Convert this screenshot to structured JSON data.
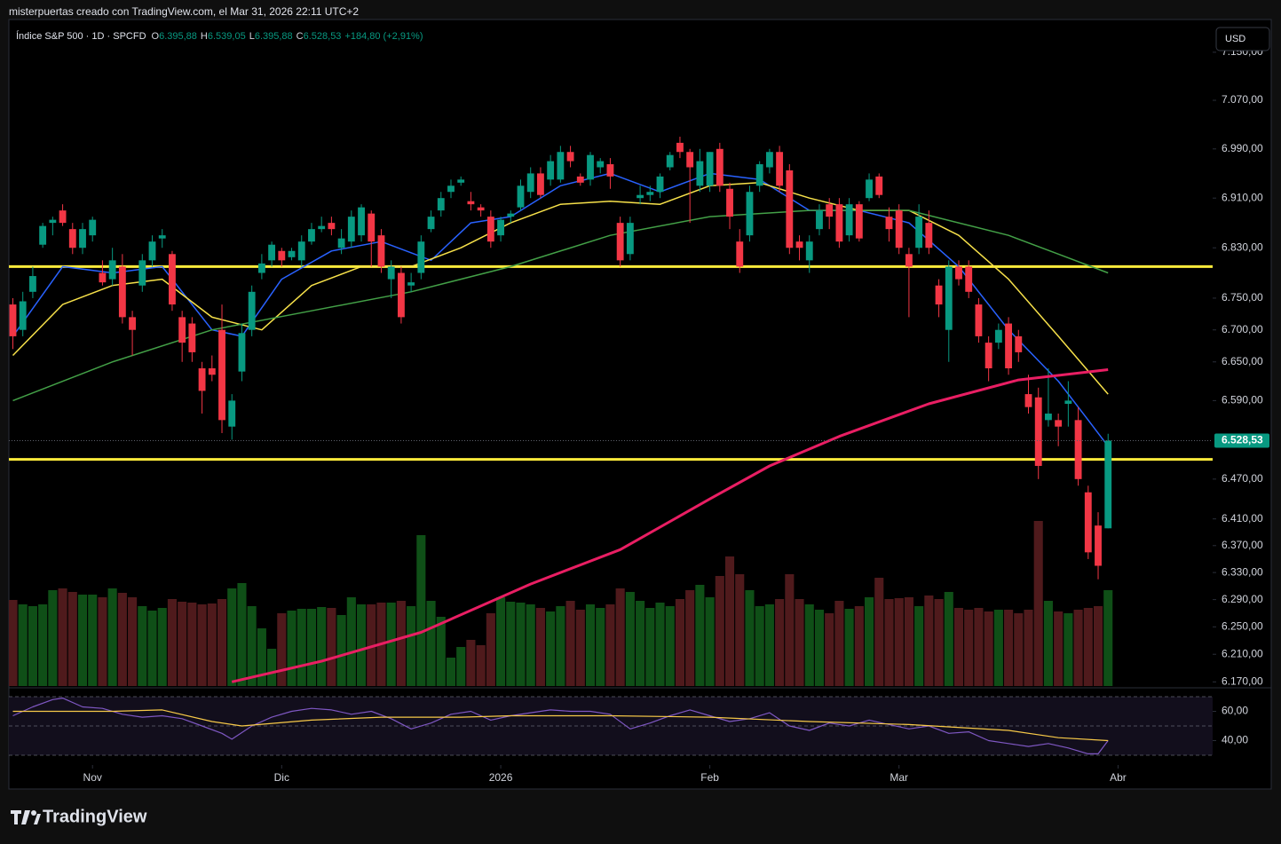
{
  "header": {
    "caption": "misterpuertas creado con TradingView.com, el Mar 31, 2026 22:11 UTC+2",
    "currency": "USD",
    "brand": "TradingView"
  },
  "chart_data": {
    "type": "candlestick",
    "title": "Índice S&P 500 · 1D · SPCFD",
    "ohlc_legend": [
      {
        "key": "O",
        "text": "6.395,88"
      },
      {
        "key": "H",
        "text": "6.539,05"
      },
      {
        "key": "L",
        "text": "6.395,88"
      },
      {
        "key": "C",
        "text": "6.528,53"
      }
    ],
    "change": "+184,80 (+2,91%)",
    "log_scale": true,
    "grid": false,
    "xlim": [
      -0.4,
      120.5
    ],
    "xticks": [
      {
        "value": 8,
        "label": "Nov"
      },
      {
        "value": 27,
        "label": "Dic"
      },
      {
        "value": 49,
        "label": "2026"
      },
      {
        "value": 70,
        "label": "Feb"
      },
      {
        "value": 89,
        "label": "Mar"
      },
      {
        "value": 111,
        "label": "Abr"
      }
    ],
    "ylim": [
      6164,
      7205
    ],
    "yticks": [
      {
        "value": 6170,
        "label": "6.170,00"
      },
      {
        "value": 6210,
        "label": "6.210,00"
      },
      {
        "value": 6250,
        "label": "6.250,00"
      },
      {
        "value": 6290,
        "label": "6.290,00"
      },
      {
        "value": 6330,
        "label": "6.330,00"
      },
      {
        "value": 6370,
        "label": "6.370,00"
      },
      {
        "value": 6410,
        "label": "6.410,00"
      },
      {
        "value": 6470,
        "label": "6.470,00"
      },
      {
        "value": 6590,
        "label": "6.590,00"
      },
      {
        "value": 6650,
        "label": "6.650,00"
      },
      {
        "value": 6700,
        "label": "6.700,00"
      },
      {
        "value": 6750,
        "label": "6.750,00"
      },
      {
        "value": 6830,
        "label": "6.830,00"
      },
      {
        "value": 6910,
        "label": "6.910,00"
      },
      {
        "value": 6990,
        "label": "6.990,00"
      },
      {
        "value": 7070,
        "label": "7.070,00"
      },
      {
        "value": 7150,
        "label": "7.150,00"
      }
    ],
    "up_color": "#089981",
    "down_color": "#f23645",
    "open": [
      6740,
      6700,
      6760,
      6835,
      6870,
      6890,
      6860,
      6830,
      6850,
      6790,
      6780,
      6800,
      6720,
      6770,
      6810,
      6845,
      6820,
      6720,
      6710,
      6640,
      6640,
      6700,
      6550,
      6635,
      6700,
      6790,
      6810,
      6825,
      6815,
      6810,
      6840,
      6860,
      6870,
      6830,
      6840,
      6850,
      6885,
      6850,
      6780,
      6790,
      6770,
      6790,
      6860,
      6890,
      6920,
      6935,
      6905,
      6895,
      6880,
      6850,
      6880,
      6895,
      6920,
      6950,
      6940,
      6940,
      6985,
      6945,
      6940,
      6960,
      6965,
      6870,
      6820,
      6910,
      6915,
      6920,
      6960,
      7000,
      6985,
      6930,
      6930,
      6990,
      6925,
      6840,
      6850,
      6930,
      6960,
      6985,
      6955,
      6840,
      6810,
      6860,
      6900,
      6900,
      6850,
      6900,
      6910,
      6945,
      6880,
      6890,
      6820,
      6830,
      6870,
      6770,
      6700,
      6800,
      6800,
      6740,
      6680,
      6680,
      6710,
      6690,
      6600,
      6595,
      6560,
      6560,
      6585,
      6560,
      6450,
      6400,
      6395.88
    ],
    "high": [
      6750,
      6760,
      6800,
      6870,
      6880,
      6900,
      6870,
      6870,
      6880,
      6810,
      6830,
      6820,
      6730,
      6820,
      6850,
      6860,
      6825,
      6730,
      6720,
      6650,
      6660,
      6740,
      6600,
      6710,
      6770,
      6820,
      6840,
      6830,
      6830,
      6850,
      6870,
      6880,
      6880,
      6860,
      6890,
      6900,
      6890,
      6860,
      6810,
      6800,
      6790,
      6850,
      6890,
      6920,
      6940,
      6945,
      6920,
      6900,
      6890,
      6880,
      6890,
      6940,
      6960,
      6960,
      6980,
      6995,
      6995,
      6950,
      6985,
      6975,
      6975,
      6880,
      6880,
      6930,
      6930,
      6950,
      6985,
      7010,
      6990,
      6990,
      6985,
      7000,
      6935,
      6860,
      6930,
      6970,
      6990,
      6995,
      6965,
      6850,
      6850,
      6900,
      6910,
      6910,
      6910,
      6905,
      6950,
      6950,
      6895,
      6900,
      6830,
      6900,
      6890,
      6780,
      6810,
      6810,
      6810,
      6750,
      6690,
      6710,
      6720,
      6700,
      6630,
      6610,
      6640,
      6570,
      6620,
      6580,
      6460,
      6420,
      6539.05
    ],
    "low": [
      6670,
      6690,
      6750,
      6830,
      6850,
      6865,
      6820,
      6820,
      6840,
      6770,
      6770,
      6710,
      6660,
      6760,
      6800,
      6830,
      6730,
      6650,
      6650,
      6570,
      6620,
      6540,
      6530,
      6620,
      6690,
      6780,
      6800,
      6800,
      6810,
      6800,
      6835,
      6855,
      6850,
      6820,
      6830,
      6840,
      6800,
      6790,
      6750,
      6710,
      6760,
      6780,
      6855,
      6880,
      6910,
      6930,
      6890,
      6880,
      6830,
      6840,
      6870,
      6890,
      6910,
      6910,
      6930,
      6935,
      6960,
      6930,
      6930,
      6950,
      6925,
      6800,
      6810,
      6900,
      6905,
      6910,
      6955,
      6975,
      6870,
      6920,
      6920,
      6920,
      6860,
      6790,
      6840,
      6920,
      6950,
      6920,
      6820,
      6810,
      6790,
      6850,
      6860,
      6830,
      6840,
      6840,
      6905,
      6910,
      6840,
      6820,
      6720,
      6820,
      6820,
      6720,
      6650,
      6770,
      6750,
      6680,
      6620,
      6670,
      6630,
      6650,
      6570,
      6470,
      6550,
      6520,
      6550,
      6460,
      6350,
      6320,
      6395.88
    ],
    "close": [
      6690,
      6745,
      6785,
      6865,
      6875,
      6870,
      6830,
      6860,
      6875,
      6775,
      6810,
      6720,
      6700,
      6810,
      6840,
      6850,
      6740,
      6680,
      6665,
      6605,
      6630,
      6560,
      6590,
      6695,
      6760,
      6805,
      6835,
      6810,
      6825,
      6840,
      6860,
      6865,
      6860,
      6845,
      6880,
      6895,
      6840,
      6800,
      6800,
      6720,
      6775,
      6840,
      6880,
      6910,
      6930,
      6940,
      6900,
      6890,
      6840,
      6875,
      6885,
      6930,
      6950,
      6915,
      6970,
      6985,
      6970,
      6935,
      6980,
      6970,
      6945,
      6810,
      6870,
      6915,
      6920,
      6945,
      6980,
      6985,
      6960,
      6970,
      6985,
      6930,
      6880,
      6800,
      6920,
      6965,
      6985,
      6930,
      6830,
      6830,
      6840,
      6890,
      6880,
      6840,
      6900,
      6845,
      6940,
      6915,
      6860,
      6830,
      6800,
      6880,
      6830,
      6740,
      6800,
      6780,
      6760,
      6690,
      6640,
      6700,
      6640,
      6665,
      6580,
      6490,
      6570,
      6550,
      6590,
      6470,
      6360,
      6340,
      6528.53
    ],
    "volume": [
      9.7,
      9.2,
      9.0,
      9.2,
      10.8,
      11.0,
      10.6,
      10.3,
      10.3,
      10.0,
      11.0,
      10.5,
      10.0,
      9.0,
      8.5,
      8.8,
      9.8,
      9.5,
      9.4,
      9.2,
      9.3,
      9.8,
      11.0,
      11.6,
      9.0,
      6.5,
      4.2,
      8.2,
      8.5,
      8.7,
      8.7,
      8.9,
      8.8,
      8.0,
      10.0,
      9.2,
      9.2,
      9.4,
      9.4,
      9.6,
      9.0,
      17.0,
      9.6,
      7.8,
      3.2,
      4.4,
      5.2,
      4.6,
      8.2,
      10.0,
      9.5,
      9.4,
      9.2,
      8.8,
      8.4,
      9.0,
      9.6,
      8.6,
      9.2,
      8.8,
      9.2,
      11.0,
      10.6,
      9.6,
      8.8,
      9.4,
      9.0,
      9.8,
      10.8,
      11.4,
      10.0,
      12.4,
      14.6,
      12.6,
      10.8,
      9.0,
      9.2,
      9.8,
      12.6,
      9.8,
      9.2,
      8.6,
      8.2,
      9.6,
      8.7,
      9.0,
      10.0,
      12.2,
      9.8,
      9.9,
      10.0,
      9.0,
      10.2,
      9.8,
      10.6,
      8.8,
      8.6,
      8.8,
      8.4,
      8.6,
      8.6,
      8.2,
      8.6,
      18.6,
      9.6,
      8.4,
      8.2,
      8.6,
      8.8,
      9.0,
      10.8
    ],
    "volume_up_color": "#0f4f17",
    "volume_down_color": "#4f1a1c",
    "last_price": {
      "value": 6528.53,
      "label": "6.528,53"
    },
    "levels": {
      "values": [
        6800,
        6500
      ],
      "color": "#ffeb3b"
    },
    "lines": [
      {
        "color": "#2962ff",
        "x": [
          0,
          5,
          10,
          15,
          20,
          23,
          27,
          32,
          37,
          42,
          46,
          50,
          55,
          60,
          65,
          70,
          75,
          80,
          85,
          90,
          95,
          100,
          105,
          108,
          110
        ],
        "values": [
          6690,
          6800,
          6790,
          6800,
          6700,
          6690,
          6780,
          6825,
          6840,
          6810,
          6870,
          6880,
          6930,
          6950,
          6920,
          6950,
          6940,
          6890,
          6890,
          6870,
          6800,
          6700,
          6620,
          6560,
          6520
        ]
      },
      {
        "color": "#f7e14a",
        "x": [
          0,
          5,
          10,
          15,
          20,
          25,
          30,
          35,
          40,
          45,
          50,
          55,
          60,
          65,
          70,
          75,
          80,
          85,
          90,
          95,
          100,
          105,
          110
        ],
        "values": [
          6660,
          6740,
          6770,
          6780,
          6720,
          6700,
          6770,
          6800,
          6800,
          6830,
          6870,
          6900,
          6905,
          6900,
          6930,
          6935,
          6910,
          6890,
          6890,
          6850,
          6780,
          6690,
          6600
        ]
      },
      {
        "color": "#43a047",
        "x": [
          0,
          10,
          20,
          30,
          40,
          50,
          60,
          70,
          80,
          90,
          100,
          105,
          110
        ],
        "values": [
          6590,
          6650,
          6700,
          6730,
          6760,
          6800,
          6850,
          6880,
          6890,
          6890,
          6850,
          6820,
          6790
        ]
      },
      {
        "color": "#e91e63",
        "x": [
          22,
          31,
          41,
          52,
          61,
          70,
          76,
          83,
          92,
          101,
          110
        ],
        "values": [
          6170,
          6200,
          6242,
          6313,
          6364,
          6440,
          6490,
          6535,
          6585,
          6622,
          6638
        ]
      }
    ],
    "rsi": {
      "ylim": [
        30,
        70
      ],
      "yticks": [
        {
          "value": 60,
          "label": "60,00"
        },
        {
          "value": 40,
          "label": "40,00"
        }
      ],
      "bands": [
        70,
        50,
        30
      ],
      "lines": [
        {
          "color": "#7e57c2",
          "x": [
            0,
            2,
            4,
            5,
            7,
            9,
            11,
            13,
            15,
            17,
            19,
            21,
            22,
            24,
            26,
            28,
            30,
            32,
            34,
            36,
            38,
            40,
            42,
            44,
            46,
            48,
            50,
            52,
            54,
            56,
            58,
            60,
            62,
            64,
            66,
            68,
            70,
            72,
            74,
            76,
            78,
            80,
            82,
            84,
            86,
            88,
            90,
            92,
            94,
            96,
            98,
            100,
            102,
            104,
            106,
            108,
            109,
            110
          ],
          "values": [
            57,
            63,
            68,
            69,
            63,
            62,
            58,
            56,
            57,
            55,
            50,
            45,
            41,
            50,
            56,
            60,
            62,
            61,
            58,
            60,
            55,
            48,
            52,
            58,
            60,
            54,
            57,
            59,
            61,
            60,
            60,
            58,
            48,
            52,
            57,
            61,
            57,
            53,
            55,
            59,
            50,
            47,
            52,
            50,
            54,
            51,
            48,
            50,
            45,
            46,
            40,
            38,
            36,
            38,
            35,
            31,
            31,
            40
          ]
        },
        {
          "color": "#f7c948",
          "x": [
            0,
            10,
            15,
            20,
            23,
            30,
            37,
            45,
            50,
            60,
            70,
            80,
            90,
            100,
            105,
            110
          ],
          "values": [
            60,
            60,
            61,
            53,
            50,
            54,
            56,
            56,
            57,
            57,
            56,
            53,
            51,
            47,
            42,
            40
          ]
        }
      ]
    }
  }
}
